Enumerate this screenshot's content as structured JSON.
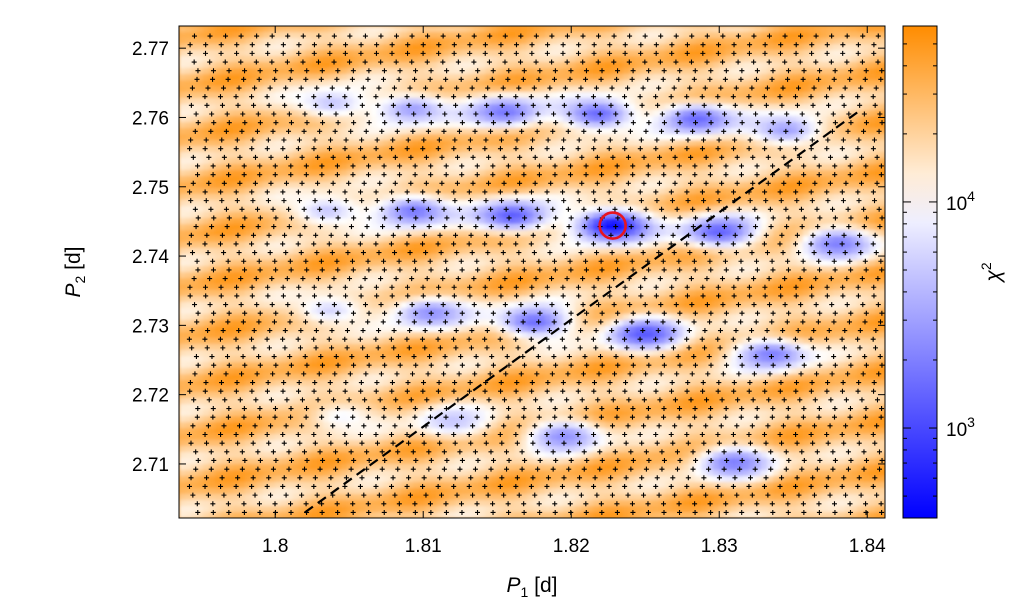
{
  "chart_data": {
    "type": "heatmap",
    "title": "",
    "xlabel": {
      "main": "P",
      "sub": "1",
      "unit": " [d]"
    },
    "ylabel": {
      "main": "P",
      "sub": "2",
      "unit": " [d]"
    },
    "xlim": [
      1.7935,
      1.8412
    ],
    "ylim": [
      2.7022,
      2.7732
    ],
    "x_ticks": [
      1.8,
      1.81,
      1.82,
      1.83,
      1.84
    ],
    "x_tick_labels": [
      "1.8",
      "1.81",
      "1.82",
      "1.83",
      "1.84"
    ],
    "y_ticks": [
      2.71,
      2.72,
      2.73,
      2.74,
      2.75,
      2.76,
      2.77
    ],
    "y_tick_labels": [
      "2.71",
      "2.72",
      "2.73",
      "2.74",
      "2.75",
      "2.76",
      "2.77"
    ],
    "colorbar": {
      "label": {
        "main": "χ",
        "sup": "2"
      },
      "scale": "log",
      "range": [
        400,
        60000
      ],
      "ticks": [
        1000,
        10000
      ],
      "tick_labels": [
        {
          "base": "10",
          "exp": "3"
        },
        {
          "base": "10",
          "exp": "4"
        }
      ],
      "colors": [
        "#0000ff",
        "#ffffff",
        "#ff8c00"
      ]
    },
    "background_chi2": 25000,
    "minima": [
      {
        "p1": 1.8038,
        "p2": 2.762,
        "chi2": 5000
      },
      {
        "p1": 1.8093,
        "p2": 2.7612,
        "chi2": 3000
      },
      {
        "p1": 1.8155,
        "p2": 2.7608,
        "chi2": 1800
      },
      {
        "p1": 1.8218,
        "p2": 2.7605,
        "chi2": 1500
      },
      {
        "p1": 1.8285,
        "p2": 2.7598,
        "chi2": 1500
      },
      {
        "p1": 1.8345,
        "p2": 2.7582,
        "chi2": 3000
      },
      {
        "p1": 1.8035,
        "p2": 2.7465,
        "chi2": 5000
      },
      {
        "p1": 1.8094,
        "p2": 2.7465,
        "chi2": 1800
      },
      {
        "p1": 1.816,
        "p2": 2.7458,
        "chi2": 1300
      },
      {
        "p1": 1.8228,
        "p2": 2.7444,
        "chi2": 450
      },
      {
        "p1": 1.83,
        "p2": 2.7435,
        "chi2": 1400
      },
      {
        "p1": 1.838,
        "p2": 2.7418,
        "chi2": 2000
      },
      {
        "p1": 1.8037,
        "p2": 2.7322,
        "chi2": 6000
      },
      {
        "p1": 1.8105,
        "p2": 2.7318,
        "chi2": 2500
      },
      {
        "p1": 1.8175,
        "p2": 2.7305,
        "chi2": 1600
      },
      {
        "p1": 1.825,
        "p2": 2.7288,
        "chi2": 1200
      },
      {
        "p1": 1.8335,
        "p2": 2.7258,
        "chi2": 2000
      },
      {
        "p1": 1.8045,
        "p2": 2.7168,
        "chi2": 9000
      },
      {
        "p1": 1.812,
        "p2": 2.7162,
        "chi2": 5000
      },
      {
        "p1": 1.8195,
        "p2": 2.714,
        "chi2": 2500
      },
      {
        "p1": 1.831,
        "p2": 2.7102,
        "chi2": 2000
      }
    ],
    "best_fit": {
      "p1": 1.8228,
      "p2": 2.7444,
      "marker": "red-circle"
    },
    "dashed_line": [
      {
        "p1": 1.802,
        "p2": 2.703
      },
      {
        "p1": 1.8395,
        "p2": 2.761
      }
    ],
    "sample_markers": "+"
  }
}
